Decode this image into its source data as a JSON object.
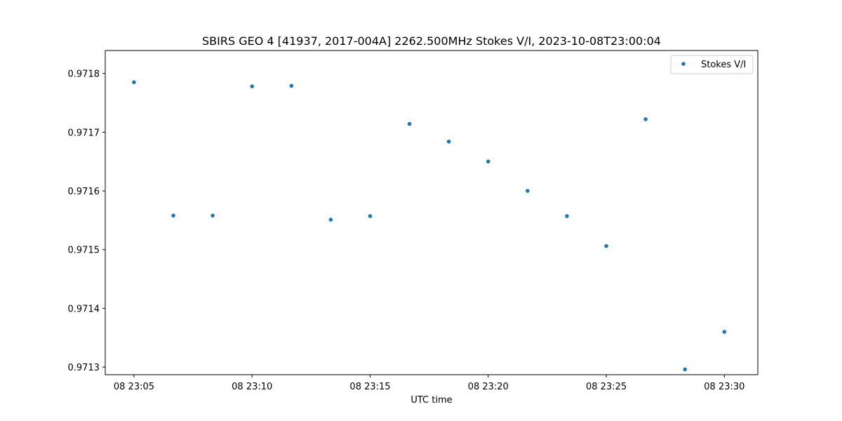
{
  "chart_data": {
    "type": "scatter",
    "title": "SBIRS GEO 4 [41937, 2017-004A] 2262.500MHz Stokes V/I, 2023-10-08T23:00:04",
    "xlabel": "UTC time",
    "ylabel": "",
    "xlim": [
      "23:03:47",
      "23:31:25"
    ],
    "ylim": [
      0.971287,
      0.971839
    ],
    "x_ticks": [
      "08 23:05",
      "08 23:10",
      "08 23:15",
      "08 23:20",
      "08 23:25",
      "08 23:30"
    ],
    "y_ticks": [
      "0.9713",
      "0.9714",
      "0.9715",
      "0.9716",
      "0.9717",
      "0.9718"
    ],
    "grid": false,
    "legend": {
      "position": "top-right",
      "entries": [
        "Stokes V/I"
      ]
    },
    "series": [
      {
        "name": "Stokes V/I",
        "color": "#1f77b4",
        "points": [
          {
            "x": "23:05:00",
            "y": 0.971785
          },
          {
            "x": "23:06:40",
            "y": 0.971558
          },
          {
            "x": "23:08:20",
            "y": 0.971558
          },
          {
            "x": "23:10:00",
            "y": 0.971778
          },
          {
            "x": "23:11:40",
            "y": 0.971779
          },
          {
            "x": "23:13:20",
            "y": 0.971551
          },
          {
            "x": "23:15:00",
            "y": 0.971557
          },
          {
            "x": "23:16:40",
            "y": 0.971714
          },
          {
            "x": "23:18:20",
            "y": 0.971684
          },
          {
            "x": "23:20:00",
            "y": 0.97165
          },
          {
            "x": "23:21:40",
            "y": 0.9716
          },
          {
            "x": "23:23:20",
            "y": 0.971557
          },
          {
            "x": "23:25:00",
            "y": 0.971506
          },
          {
            "x": "23:26:40",
            "y": 0.971722
          },
          {
            "x": "23:28:20",
            "y": 0.971296
          },
          {
            "x": "23:30:00",
            "y": 0.97136
          }
        ]
      }
    ]
  }
}
